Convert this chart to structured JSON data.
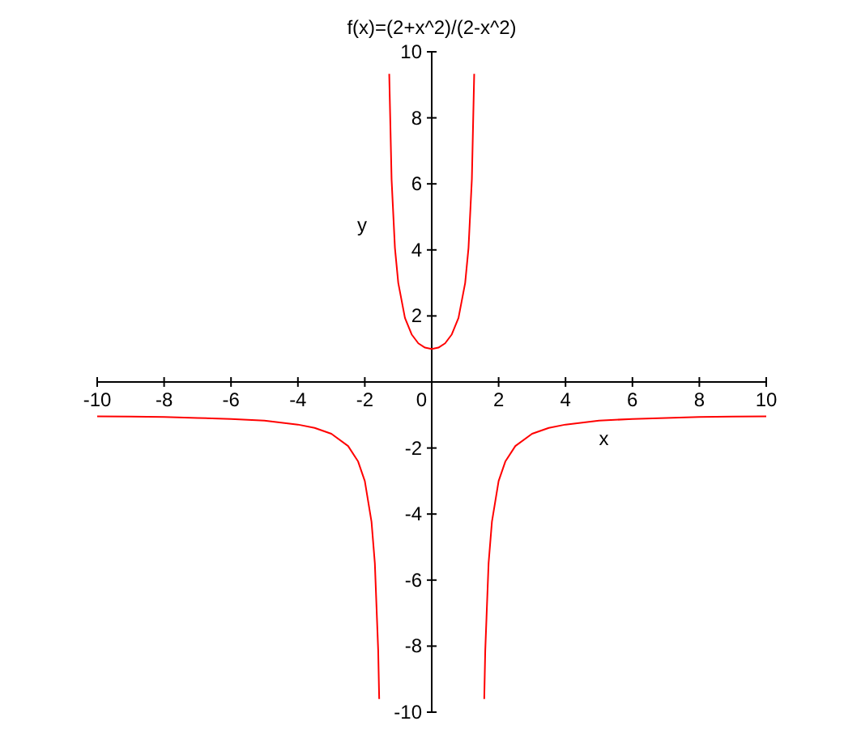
{
  "chart_data": {
    "type": "line",
    "title": "f(x)=(2+x^2)/(2-x^2)",
    "xlabel": "x",
    "ylabel": "y",
    "x": [
      -10,
      -9,
      -8,
      -7,
      -6,
      -5,
      -4,
      -3.5,
      -3,
      -2.5,
      -2.2,
      -2,
      -1.8,
      -1.7,
      -1.6,
      -1.57,
      -1.45,
      -1.27,
      -1.2,
      -1.1,
      -1,
      -0.8,
      -0.6,
      -0.4,
      -0.2,
      0,
      0.2,
      0.4,
      0.6,
      0.8,
      1,
      1.1,
      1.2,
      1.27,
      1.45,
      1.57,
      1.6,
      1.7,
      1.8,
      2,
      2.2,
      2.5,
      3,
      3.5,
      4,
      5,
      6,
      7,
      8,
      9,
      10
    ],
    "series": [
      {
        "color": "#ff0000",
        "values": [
          -1.04,
          -1.05,
          -1.06,
          -1.09,
          -1.12,
          -1.17,
          -1.29,
          -1.39,
          -1.57,
          -1.94,
          -2.41,
          -3,
          -4.23,
          -5.49,
          -8.14,
          -9.6,
          null,
          9.33,
          6.14,
          4.06,
          3,
          1.94,
          1.44,
          1.17,
          1.04,
          1,
          1.04,
          1.17,
          1.44,
          1.94,
          3,
          4.06,
          6.14,
          9.33,
          null,
          -9.6,
          -8.14,
          -5.49,
          -4.23,
          -3,
          -2.41,
          -1.94,
          -1.57,
          -1.39,
          -1.29,
          -1.17,
          -1.12,
          -1.09,
          -1.06,
          -1.05,
          -1.04
        ]
      }
    ],
    "xlim": [
      -10,
      10
    ],
    "ylim": [
      -10,
      10
    ],
    "xticks": [
      -10,
      -8,
      -6,
      -4,
      -2,
      0,
      2,
      4,
      6,
      8,
      10
    ],
    "yticks": [
      -10,
      -8,
      -6,
      -4,
      -2,
      {
        "value": 0,
        "label": null
      },
      2,
      4,
      6,
      8,
      10
    ],
    "grid": false,
    "marker": "none",
    "line_style": "solid"
  }
}
